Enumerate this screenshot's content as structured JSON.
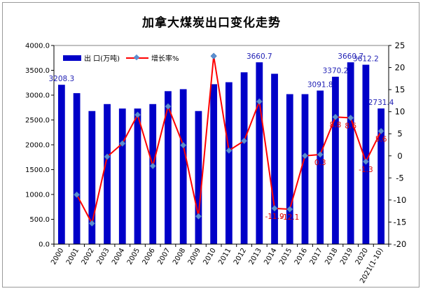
{
  "chart_data": {
    "type": "bar",
    "title": "加拿大煤炭出口变化走势",
    "categories": [
      "2000",
      "2001",
      "2002",
      "2003",
      "2004",
      "2005",
      "2006",
      "2007",
      "2008",
      "2009",
      "2010",
      "2011",
      "2012",
      "2013",
      "2014",
      "2015",
      "2016",
      "2017",
      "2018",
      "2019",
      "2020",
      "2021(1-10)"
    ],
    "series": [
      {
        "name": "出 口(万吨)",
        "type": "bar",
        "axis": "left",
        "color": "#0000c8",
        "values": [
          3208.3,
          3040,
          2680,
          2820,
          2730,
          2730,
          2820,
          3080,
          3120,
          2680,
          3220,
          3260,
          3460,
          3660.7,
          3430,
          3020,
          3020,
          3091.8,
          3370.2,
          3660.7,
          3612.2,
          2731.4
        ]
      },
      {
        "name": "增长率%",
        "type": "line",
        "axis": "right",
        "color": "#ff0000",
        "marker_color": "#5b8fd1",
        "values": [
          null,
          -8.8,
          -15.3,
          -0.2,
          2.8,
          9.3,
          -2.3,
          11.2,
          2.4,
          -13.7,
          22.6,
          1.2,
          3.4,
          12.3,
          -11.9,
          -12.1,
          0.0,
          0.3,
          8.8,
          8.6,
          -1.3,
          5.6
        ]
      }
    ],
    "bar_labels": [
      {
        "index": 0,
        "text": "3208.3"
      },
      {
        "index": 13,
        "text": "3660.7"
      },
      {
        "index": 17,
        "text": "3091.8"
      },
      {
        "index": 18,
        "text": "3370.2"
      },
      {
        "index": 19,
        "text": "3660.7"
      },
      {
        "index": 20,
        "text": "3612.2"
      },
      {
        "index": 21,
        "text": "2731.4"
      }
    ],
    "line_labels": [
      {
        "index": 14,
        "text": "-11.9"
      },
      {
        "index": 15,
        "text": "-12.1"
      },
      {
        "index": 17,
        "text": "0.3"
      },
      {
        "index": 18,
        "text": "8.8"
      },
      {
        "index": 19,
        "text": "8.6"
      },
      {
        "index": 20,
        "text": "-1.3"
      },
      {
        "index": 21,
        "text": "5.6"
      }
    ],
    "y_left": {
      "min": 0,
      "max": 4000,
      "step": 500,
      "ticks": [
        "0.0",
        "500.0",
        "1000.0",
        "1500.0",
        "2000.0",
        "2500.0",
        "3000.0",
        "3500.0",
        "4000.0"
      ]
    },
    "y_right": {
      "min": -20,
      "max": 25,
      "step": 5,
      "ticks": [
        "-20",
        "-15",
        "-10",
        "-5",
        "0",
        "5",
        "10",
        "15",
        "20",
        "25"
      ]
    },
    "grid": false,
    "legend_position": "top-left"
  }
}
